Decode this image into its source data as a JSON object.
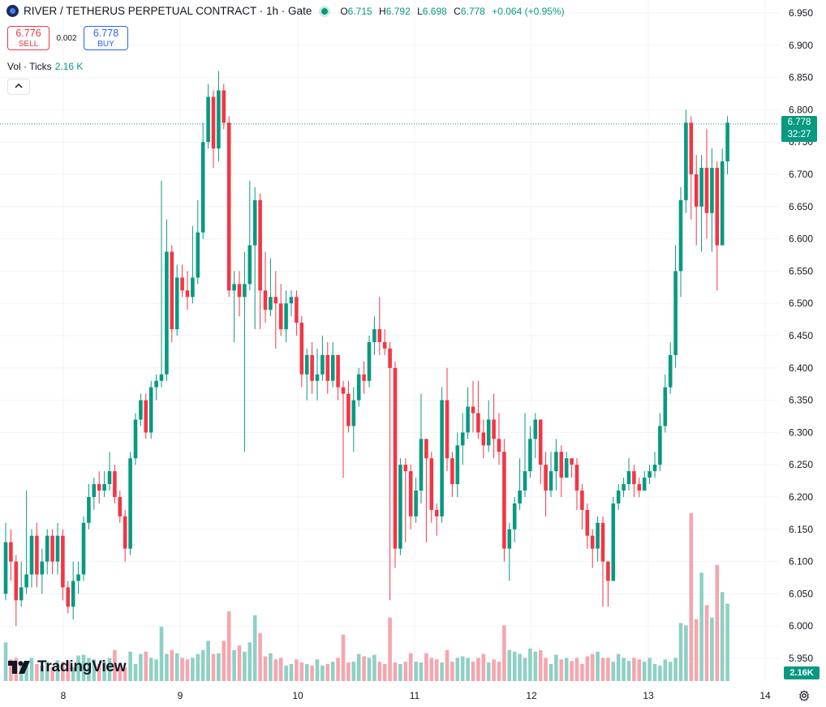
{
  "header": {
    "title": "RIVER / TETHERUS PERPETUAL CONTRACT · 1h · Gate",
    "ohlc": [
      {
        "k": "O",
        "v": "6.715"
      },
      {
        "k": "H",
        "v": "6.792"
      },
      {
        "k": "L",
        "v": "6.698"
      },
      {
        "k": "C",
        "v": "6.778"
      }
    ],
    "change": "+0.064 (+0.95%)"
  },
  "trade": {
    "sell_price": "6.776",
    "sell_label": "SELL",
    "spread": "0.002",
    "buy_price": "6.778",
    "buy_label": "BUY"
  },
  "volume": {
    "label": "Vol · Ticks",
    "value": "2.16 K",
    "axis_label": "2.16K"
  },
  "price_label": {
    "price": "6.778",
    "countdown": "32:27"
  },
  "logo": {
    "text": "TradingView"
  },
  "colors": {
    "up": "#089981",
    "down": "#f23645",
    "up_vol": "#8fd0c5",
    "down_vol": "#f5a6ae"
  },
  "icons": {
    "collapse": "chevron-up-icon",
    "settings": "gear-icon"
  },
  "chart_data": {
    "type": "candlestick",
    "y_ticks": [
      "6.950",
      "6.900",
      "6.850",
      "6.800",
      "6.750",
      "6.700",
      "6.650",
      "6.600",
      "6.550",
      "6.500",
      "6.450",
      "6.400",
      "6.350",
      "6.300",
      "6.250",
      "6.200",
      "6.150",
      "6.100",
      "6.050",
      "6.000",
      "5.950"
    ],
    "x_ticks": [
      "8",
      "9",
      "10",
      "11",
      "12",
      "13",
      "14"
    ],
    "candles": [
      [
        6.05,
        6.13,
        6.16,
        6.04
      ],
      [
        6.13,
        6.1,
        6.15,
        6.07
      ],
      [
        6.1,
        6.04,
        6.11,
        6.0
      ],
      [
        6.04,
        6.06,
        6.1,
        6.03
      ],
      [
        6.06,
        6.08,
        6.21,
        6.05
      ],
      [
        6.08,
        6.14,
        6.15,
        6.06
      ],
      [
        6.14,
        6.08,
        6.16,
        6.06
      ],
      [
        6.08,
        6.1,
        6.12,
        6.05
      ],
      [
        6.1,
        6.14,
        6.15,
        6.08
      ],
      [
        6.14,
        6.1,
        6.15,
        6.08
      ],
      [
        6.1,
        6.14,
        6.16,
        6.08
      ],
      [
        6.14,
        6.06,
        6.15,
        6.04
      ],
      [
        6.06,
        6.03,
        6.07,
        6.02
      ],
      [
        6.03,
        6.07,
        6.1,
        6.01
      ],
      [
        6.07,
        6.08,
        6.1,
        6.05
      ],
      [
        6.08,
        6.16,
        6.17,
        6.07
      ],
      [
        6.16,
        6.2,
        6.22,
        6.15
      ],
      [
        6.2,
        6.22,
        6.23,
        6.18
      ],
      [
        6.22,
        6.21,
        6.24,
        6.19
      ],
      [
        6.21,
        6.22,
        6.24,
        6.2
      ],
      [
        6.22,
        6.24,
        6.27,
        6.21
      ],
      [
        6.24,
        6.2,
        6.25,
        6.19
      ],
      [
        6.2,
        6.17,
        6.21,
        6.16
      ],
      [
        6.17,
        6.12,
        6.18,
        6.1
      ],
      [
        6.12,
        6.26,
        6.27,
        6.11
      ],
      [
        6.26,
        6.32,
        6.33,
        6.25
      ],
      [
        6.32,
        6.35,
        6.36,
        6.31
      ],
      [
        6.35,
        6.3,
        6.36,
        6.29
      ],
      [
        6.3,
        6.37,
        6.38,
        6.29
      ],
      [
        6.37,
        6.38,
        6.39,
        6.35
      ],
      [
        6.38,
        6.39,
        6.69,
        6.37
      ],
      [
        6.39,
        6.58,
        6.63,
        6.38
      ],
      [
        6.58,
        6.46,
        6.59,
        6.44
      ],
      [
        6.46,
        6.54,
        6.56,
        6.45
      ],
      [
        6.54,
        6.52,
        6.56,
        6.51
      ],
      [
        6.52,
        6.51,
        6.55,
        6.49
      ],
      [
        6.51,
        6.54,
        6.62,
        6.5
      ],
      [
        6.54,
        6.61,
        6.66,
        6.53
      ],
      [
        6.61,
        6.75,
        6.78,
        6.6
      ],
      [
        6.75,
        6.82,
        6.84,
        6.74
      ],
      [
        6.82,
        6.74,
        6.83,
        6.71
      ],
      [
        6.74,
        6.83,
        6.86,
        6.72
      ],
      [
        6.83,
        6.78,
        6.84,
        6.77
      ],
      [
        6.78,
        6.52,
        6.79,
        6.51
      ],
      [
        6.52,
        6.53,
        6.55,
        6.44
      ],
      [
        6.53,
        6.51,
        6.55,
        6.48
      ],
      [
        6.51,
        6.53,
        6.58,
        6.27
      ],
      [
        6.53,
        6.59,
        6.69,
        6.52
      ],
      [
        6.59,
        6.66,
        6.68,
        6.46
      ],
      [
        6.66,
        6.52,
        6.67,
        6.46
      ],
      [
        6.52,
        6.49,
        6.58,
        6.47
      ],
      [
        6.49,
        6.51,
        6.57,
        6.48
      ],
      [
        6.51,
        6.5,
        6.55,
        6.43
      ],
      [
        6.5,
        6.46,
        6.53,
        6.45
      ],
      [
        6.46,
        6.5,
        6.52,
        6.44
      ],
      [
        6.5,
        6.51,
        6.52,
        6.48
      ],
      [
        6.51,
        6.47,
        6.52,
        6.45
      ],
      [
        6.47,
        6.39,
        6.48,
        6.37
      ],
      [
        6.39,
        6.42,
        6.43,
        6.35
      ],
      [
        6.42,
        6.38,
        6.44,
        6.36
      ],
      [
        6.38,
        6.39,
        6.43,
        6.35
      ],
      [
        6.39,
        6.42,
        6.45,
        6.38
      ],
      [
        6.42,
        6.38,
        6.44,
        6.36
      ],
      [
        6.38,
        6.42,
        6.44,
        6.37
      ],
      [
        6.42,
        6.37,
        6.42,
        6.35
      ],
      [
        6.37,
        6.36,
        6.38,
        6.23
      ],
      [
        6.36,
        6.31,
        6.38,
        6.3
      ],
      [
        6.31,
        6.35,
        6.37,
        6.27
      ],
      [
        6.35,
        6.39,
        6.4,
        6.34
      ],
      [
        6.39,
        6.38,
        6.41,
        6.36
      ],
      [
        6.38,
        6.44,
        6.45,
        6.37
      ],
      [
        6.44,
        6.46,
        6.48,
        6.42
      ],
      [
        6.46,
        6.44,
        6.51,
        6.42
      ],
      [
        6.44,
        6.43,
        6.46,
        6.42
      ],
      [
        6.43,
        6.4,
        6.44,
        6.04
      ],
      [
        6.4,
        6.12,
        6.41,
        6.09
      ],
      [
        6.12,
        6.25,
        6.26,
        6.11
      ],
      [
        6.25,
        6.24,
        6.26,
        6.13
      ],
      [
        6.24,
        6.17,
        6.25,
        6.15
      ],
      [
        6.17,
        6.21,
        6.23,
        6.16
      ],
      [
        6.21,
        6.29,
        6.36,
        6.19
      ],
      [
        6.29,
        6.26,
        6.29,
        6.13
      ],
      [
        6.26,
        6.18,
        6.27,
        6.16
      ],
      [
        6.18,
        6.17,
        6.19,
        6.14
      ],
      [
        6.17,
        6.35,
        6.37,
        6.16
      ],
      [
        6.35,
        6.26,
        6.4,
        6.24
      ],
      [
        6.26,
        6.22,
        6.27,
        6.2
      ],
      [
        6.22,
        6.28,
        6.3,
        6.2
      ],
      [
        6.28,
        6.3,
        6.33,
        6.25
      ],
      [
        6.3,
        6.34,
        6.37,
        6.29
      ],
      [
        6.34,
        6.33,
        6.38,
        6.3
      ],
      [
        6.33,
        6.3,
        6.38,
        6.29
      ],
      [
        6.3,
        6.28,
        6.32,
        6.26
      ],
      [
        6.28,
        6.32,
        6.35,
        6.27
      ],
      [
        6.32,
        6.29,
        6.36,
        6.26
      ],
      [
        6.29,
        6.27,
        6.33,
        6.25
      ],
      [
        6.27,
        6.12,
        6.29,
        6.1
      ],
      [
        6.12,
        6.15,
        6.16,
        6.07
      ],
      [
        6.15,
        6.19,
        6.2,
        6.13
      ],
      [
        6.19,
        6.21,
        6.26,
        6.18
      ],
      [
        6.21,
        6.24,
        6.33,
        6.2
      ],
      [
        6.24,
        6.29,
        6.31,
        6.23
      ],
      [
        6.29,
        6.32,
        6.33,
        6.26
      ],
      [
        6.32,
        6.25,
        6.32,
        6.22
      ],
      [
        6.25,
        6.21,
        6.27,
        6.17
      ],
      [
        6.21,
        6.24,
        6.27,
        6.2
      ],
      [
        6.24,
        6.27,
        6.29,
        6.21
      ],
      [
        6.27,
        6.23,
        6.28,
        6.2
      ],
      [
        6.23,
        6.26,
        6.27,
        6.23
      ],
      [
        6.26,
        6.25,
        6.26,
        6.23
      ],
      [
        6.25,
        6.21,
        6.26,
        6.18
      ],
      [
        6.21,
        6.18,
        6.22,
        6.15
      ],
      [
        6.18,
        6.14,
        6.19,
        6.12
      ],
      [
        6.14,
        6.12,
        6.15,
        6.09
      ],
      [
        6.12,
        6.16,
        6.17,
        6.1
      ],
      [
        6.16,
        6.1,
        6.17,
        6.03
      ],
      [
        6.1,
        6.07,
        6.1,
        6.03
      ],
      [
        6.07,
        6.19,
        6.2,
        6.07
      ],
      [
        6.19,
        6.21,
        6.22,
        6.18
      ],
      [
        6.21,
        6.22,
        6.23,
        6.2
      ],
      [
        6.22,
        6.24,
        6.26,
        6.21
      ],
      [
        6.24,
        6.22,
        6.25,
        6.2
      ],
      [
        6.22,
        6.21,
        6.23,
        6.2
      ],
      [
        6.21,
        6.23,
        6.24,
        6.21
      ],
      [
        6.23,
        6.24,
        6.25,
        6.22
      ],
      [
        6.24,
        6.25,
        6.27,
        6.23
      ],
      [
        6.25,
        6.31,
        6.33,
        6.24
      ],
      [
        6.31,
        6.37,
        6.39,
        6.3
      ],
      [
        6.37,
        6.42,
        6.44,
        6.36
      ],
      [
        6.42,
        6.55,
        6.59,
        6.4
      ],
      [
        6.55,
        6.66,
        6.68,
        6.51
      ],
      [
        6.66,
        6.78,
        6.8,
        6.64
      ],
      [
        6.78,
        6.7,
        6.79,
        6.63
      ],
      [
        6.7,
        6.65,
        6.73,
        6.59
      ],
      [
        6.65,
        6.71,
        6.73,
        6.58
      ],
      [
        6.71,
        6.64,
        6.77,
        6.6
      ],
      [
        6.64,
        6.71,
        6.74,
        6.58
      ],
      [
        6.71,
        6.59,
        6.72,
        6.52
      ],
      [
        6.59,
        6.72,
        6.74,
        6.7
      ],
      [
        6.72,
        6.78,
        6.79,
        6.7
      ]
    ],
    "volumes": [
      0.5,
      0.28,
      0.3,
      0.22,
      0.26,
      0.3,
      0.22,
      0.2,
      0.24,
      0.18,
      0.27,
      0.25,
      0.26,
      0.18,
      0.33,
      0.34,
      0.3,
      0.28,
      0.22,
      0.25,
      0.3,
      0.4,
      0.22,
      0.18,
      0.38,
      0.22,
      0.35,
      0.38,
      0.3,
      0.28,
      0.7,
      0.35,
      0.4,
      0.36,
      0.3,
      0.28,
      0.3,
      0.35,
      0.4,
      0.52,
      0.35,
      0.36,
      0.52,
      0.9,
      0.4,
      0.46,
      0.38,
      0.5,
      0.85,
      0.62,
      0.32,
      0.36,
      0.28,
      0.3,
      0.2,
      0.22,
      0.28,
      0.24,
      0.22,
      0.2,
      0.28,
      0.2,
      0.22,
      0.25,
      0.3,
      0.6,
      0.24,
      0.25,
      0.35,
      0.32,
      0.3,
      0.34,
      0.25,
      0.22,
      0.82,
      0.24,
      0.22,
      0.25,
      0.36,
      0.25,
      0.24,
      0.36,
      0.3,
      0.28,
      0.24,
      0.4,
      0.25,
      0.3,
      0.32,
      0.3,
      0.25,
      0.3,
      0.35,
      0.24,
      0.28,
      0.25,
      0.72,
      0.4,
      0.38,
      0.35,
      0.3,
      0.42,
      0.38,
      0.4,
      0.3,
      0.22,
      0.34,
      0.28,
      0.3,
      0.26,
      0.3,
      0.22,
      0.32,
      0.35,
      0.38,
      0.3,
      0.3,
      0.25,
      0.35,
      0.3,
      0.26,
      0.3,
      0.28,
      0.25,
      0.3,
      0.22,
      0.2,
      0.28,
      0.25,
      0.3,
      0.75,
      0.72,
      2.17,
      0.8,
      1.4,
      0.98,
      0.82,
      1.5,
      1.15,
      1.0,
      1.62,
      1.05,
      0.28
    ]
  }
}
